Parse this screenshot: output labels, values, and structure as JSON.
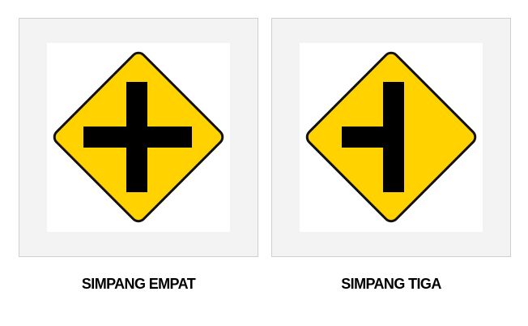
{
  "signs": [
    {
      "caption": "SIMPANG EMPAT",
      "icon": "four-way-intersection-sign-icon"
    },
    {
      "caption": "SIMPANG TIGA",
      "icon": "t-junction-left-sign-icon"
    }
  ],
  "colors": {
    "sign_fill": "#FFD200",
    "sign_border": "#111111",
    "symbol": "#000000",
    "panel_bg": "#f3f3f3",
    "panel_border": "#cfcfcf"
  }
}
